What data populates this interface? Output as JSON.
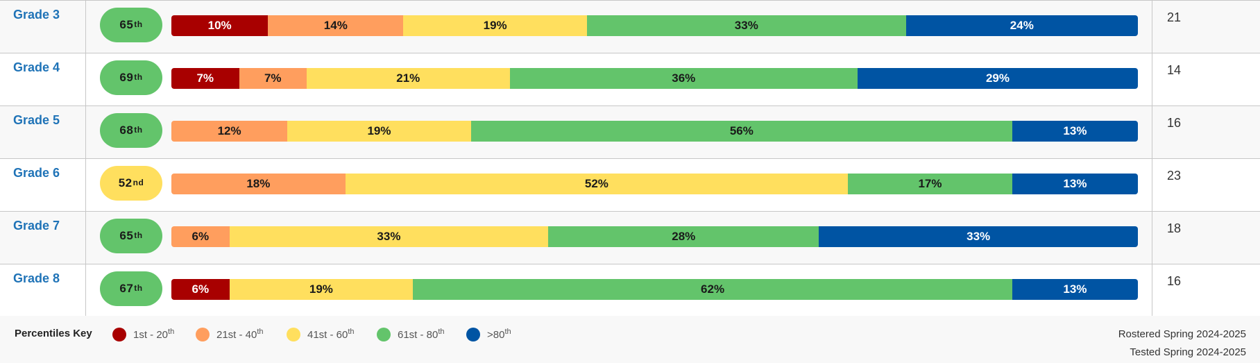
{
  "colors": {
    "band1": "#a80000",
    "band2": "#ff9e5e",
    "band3": "#ffdf5e",
    "band4": "#63c46b",
    "band5": "#0054a3",
    "link": "#1f73b7"
  },
  "chart_data": {
    "type": "bar",
    "stacked": true,
    "orientation": "horizontal",
    "percent_scale": true,
    "categories": [
      "Grade 3",
      "Grade 4",
      "Grade 5",
      "Grade 6",
      "Grade 7",
      "Grade 8"
    ],
    "median_percentile": [
      "65",
      "69",
      "68",
      "52",
      "65",
      "67"
    ],
    "median_suffix": [
      "th",
      "th",
      "th",
      "nd",
      "th",
      "th"
    ],
    "counts": [
      "21",
      "14",
      "16",
      "23",
      "18",
      "16"
    ],
    "series": [
      {
        "name": "1st - 20th",
        "values": [
          10,
          7,
          0,
          0,
          0,
          6
        ]
      },
      {
        "name": "21st - 40th",
        "values": [
          14,
          7,
          12,
          18,
          6,
          0
        ]
      },
      {
        "name": "41st - 60th",
        "values": [
          19,
          21,
          19,
          52,
          33,
          19
        ]
      },
      {
        "name": "61st - 80th",
        "values": [
          33,
          36,
          56,
          17,
          28,
          62
        ]
      },
      {
        "name": ">80th",
        "values": [
          24,
          29,
          13,
          13,
          33,
          13
        ]
      }
    ],
    "legend_position": "bottom-left"
  },
  "key": {
    "title": "Percentiles Key",
    "items": [
      {
        "label": "1st - 20",
        "sup": "th"
      },
      {
        "label": "21st - 40",
        "sup": "th"
      },
      {
        "label": "41st - 60",
        "sup": "th"
      },
      {
        "label": "61st - 80",
        "sup": "th"
      },
      {
        "label": ">80",
        "sup": "th"
      }
    ]
  },
  "meta": {
    "rostered": "Rostered Spring 2024-2025",
    "tested": "Tested Spring 2024-2025"
  }
}
